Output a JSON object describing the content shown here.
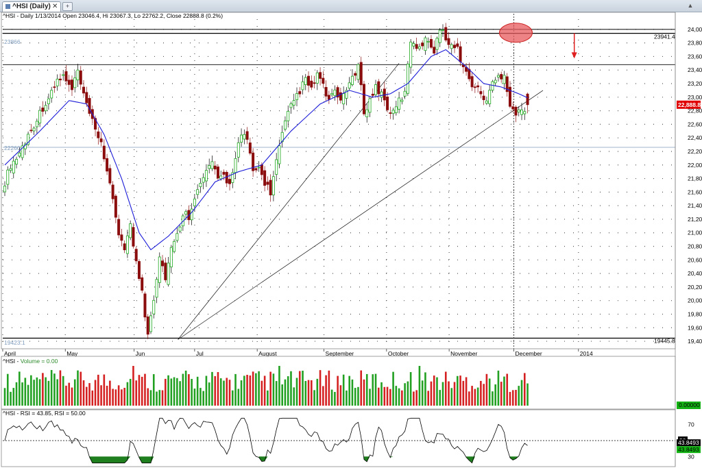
{
  "tab": {
    "label": "^HSI (Daily)",
    "close_glyph": "✕",
    "new_glyph": "+",
    "scroll_glyph": "▲"
  },
  "price_panel": {
    "title": "^HSI - Daily 1/13/2014 Open 23046.4, Hi 23067.3, Lo 22762.2, Close 22888.8 (0.2%)",
    "y_ticks": [
      "24,000",
      "23,800",
      "23,600",
      "23,400",
      "23,200",
      "23,000",
      "22,800",
      "22,600",
      "22,400",
      "22,200",
      "22,000",
      "21,800",
      "21,600",
      "21,400",
      "21,200",
      "21,000",
      "20,800",
      "20,600",
      "20,400",
      "20,200",
      "20,000",
      "19,800",
      "19,600",
      "19,400"
    ],
    "level_labels": [
      "23866",
      "23941.4",
      "22260",
      "19423.1",
      "19445.8"
    ],
    "last_price_flag": "22,888.8",
    "months": [
      "April",
      "May",
      "Jun",
      "Jul",
      "August",
      "September",
      "October",
      "November",
      "December",
      "2014"
    ]
  },
  "volume_panel": {
    "title_prefix": "^HSI - ",
    "title_indicator": "Volume = 0.00",
    "flag": "0.00000"
  },
  "rsi_panel": {
    "title": "^HSI - RSI = 43.85, RSI = 50.00",
    "y_ticks": [
      "70",
      "30"
    ],
    "flag_50": "50",
    "flag_a": "43.8493",
    "flag_b": "43.8493"
  },
  "colors": {
    "up": "#1fa81f",
    "down": "#8b0d0d",
    "vol_up": "#22a022",
    "vol_down": "#d42020",
    "ma": "#1c1cd8",
    "grid": "#555555",
    "rsi_fill": "#1f7f1f",
    "flag_red": "#e00000",
    "flag_green": "#13b313",
    "highlight": "#e8595d",
    "arrow": "#e02020"
  },
  "chart_data": {
    "type": "candlestick",
    "title": "^HSI - Daily 1/13/2014 Open 23046.4, Hi 23067.3, Lo 22762.2, Close 22888.8 (0.2%)",
    "x_range": [
      "2013-04-02",
      "2014-01-13"
    ],
    "y_range": [
      19350,
      24150
    ],
    "last_bar": {
      "date": "2014-01-13",
      "open": 23046.4,
      "high": 23067.3,
      "low": 22762.2,
      "close": 22888.8
    },
    "close_keypoints": [
      [
        0,
        21750
      ],
      [
        2,
        22000
      ],
      [
        4,
        22100
      ],
      [
        7,
        22350
      ],
      [
        10,
        22600
      ],
      [
        13,
        22850
      ],
      [
        16,
        23050
      ],
      [
        18,
        23250
      ],
      [
        20,
        23300
      ],
      [
        23,
        23100
      ],
      [
        25,
        23380
      ],
      [
        27,
        23000
      ],
      [
        29,
        22750
      ],
      [
        31,
        22500
      ],
      [
        33,
        22350
      ],
      [
        35,
        21900
      ],
      [
        37,
        21450
      ],
      [
        39,
        21000
      ],
      [
        41,
        20800
      ],
      [
        43,
        21100
      ],
      [
        45,
        20550
      ],
      [
        47,
        20150
      ],
      [
        48,
        19800
      ],
      [
        49,
        19550
      ],
      [
        51,
        20050
      ],
      [
        53,
        20650
      ],
      [
        55,
        20350
      ],
      [
        57,
        20750
      ],
      [
        59,
        20950
      ],
      [
        61,
        21300
      ],
      [
        63,
        21250
      ],
      [
        65,
        21550
      ],
      [
        67,
        21700
      ],
      [
        69,
        21900
      ],
      [
        71,
        22050
      ],
      [
        73,
        21750
      ],
      [
        75,
        21850
      ],
      [
        77,
        21700
      ],
      [
        79,
        22150
      ],
      [
        81,
        22450
      ],
      [
        83,
        22350
      ],
      [
        85,
        21900
      ],
      [
        87,
        21950
      ],
      [
        89,
        21750
      ],
      [
        91,
        21600
      ],
      [
        93,
        22050
      ],
      [
        95,
        22450
      ],
      [
        97,
        22750
      ],
      [
        99,
        22950
      ],
      [
        101,
        23100
      ],
      [
        103,
        23250
      ],
      [
        105,
        23100
      ],
      [
        107,
        23350
      ],
      [
        109,
        23150
      ],
      [
        111,
        22950
      ],
      [
        113,
        23050
      ],
      [
        115,
        22950
      ],
      [
        117,
        23150
      ],
      [
        119,
        23250
      ],
      [
        121,
        23450
      ],
      [
        123,
        22800
      ],
      [
        125,
        22950
      ],
      [
        127,
        23150
      ],
      [
        129,
        23050
      ],
      [
        131,
        22850
      ],
      [
        133,
        22750
      ],
      [
        135,
        22950
      ],
      [
        137,
        23050
      ],
      [
        139,
        23850
      ],
      [
        141,
        23750
      ],
      [
        143,
        23800
      ],
      [
        145,
        23850
      ],
      [
        147,
        23700
      ],
      [
        148,
        23880
      ],
      [
        149,
        23990
      ],
      [
        151,
        23900
      ],
      [
        153,
        23750
      ],
      [
        155,
        23700
      ],
      [
        157,
        23450
      ],
      [
        159,
        23250
      ],
      [
        161,
        23150
      ],
      [
        163,
        23050
      ],
      [
        165,
        22950
      ],
      [
        167,
        23200
      ],
      [
        169,
        23300
      ],
      [
        171,
        23350
      ],
      [
        173,
        22900
      ],
      [
        175,
        22750
      ],
      [
        177,
        22800
      ],
      [
        179,
        22888.8
      ]
    ],
    "moving_average_keypoints": [
      [
        0,
        22000
      ],
      [
        12,
        22500
      ],
      [
        22,
        22950
      ],
      [
        28,
        22900
      ],
      [
        34,
        22450
      ],
      [
        40,
        21800
      ],
      [
        46,
        21000
      ],
      [
        50,
        20750
      ],
      [
        56,
        20950
      ],
      [
        64,
        21300
      ],
      [
        72,
        21750
      ],
      [
        80,
        21900
      ],
      [
        88,
        22000
      ],
      [
        98,
        22500
      ],
      [
        108,
        22900
      ],
      [
        118,
        23100
      ],
      [
        126,
        23000
      ],
      [
        132,
        23050
      ],
      [
        138,
        23200
      ],
      [
        146,
        23600
      ],
      [
        151,
        23700
      ],
      [
        158,
        23450
      ],
      [
        164,
        23200
      ],
      [
        170,
        23150
      ],
      [
        176,
        23050
      ],
      [
        179,
        22990
      ]
    ],
    "horizontal_levels": [
      24000,
      23941.4,
      23866,
      23480,
      22260,
      19445.8,
      19423.1
    ],
    "trendlines": [
      {
        "from": [
          "2013-06-24",
          19426
        ],
        "to": [
          "2013-10-08",
          23500
        ]
      },
      {
        "from": [
          "2013-06-24",
          19426
        ],
        "to": [
          "2013-12-16",
          23100
        ]
      }
    ],
    "cursor_date": "2013-12-02",
    "highlight": {
      "date": "2013-12-02",
      "price": 23950
    },
    "arrow": {
      "date": "2013-12-31",
      "price": 23560
    },
    "volume": {
      "range": [
        0,
        100
      ],
      "note": "relative bar heights"
    },
    "rsi": {
      "range": [
        20,
        80
      ],
      "ticks": [
        70,
        30
      ],
      "last": 43.85,
      "reference": 50
    }
  }
}
